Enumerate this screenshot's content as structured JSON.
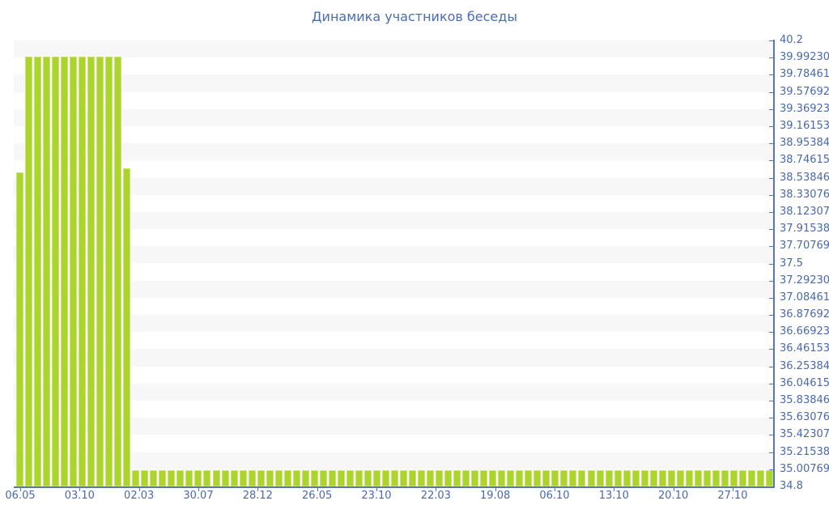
{
  "title": "Динамика участников беседы",
  "colors": {
    "background": "#ffffff",
    "title_text": "#4a6cb5",
    "axis_text": "#4a68ae",
    "axis_line": "#5b74b8",
    "bar_fill": "#abd42e",
    "bar_border": "#c9e36e",
    "stripe_band": "#f7f7f7"
  },
  "chart_data": {
    "type": "bar",
    "title": "Динамика участников беседы",
    "xlabel": "",
    "ylabel": "",
    "legend": "none",
    "y_axis_side": "right",
    "grid": "alternating horizontal stripe bands",
    "ylim": [
      34.8,
      40.2
    ],
    "y_tick_labels": [
      "40.2",
      "39.99230",
      "39.78461",
      "39.57692",
      "39.36923",
      "39.16153",
      "38.95384",
      "38.74615",
      "38.53846",
      "38.33076",
      "38.12307",
      "37.91538",
      "37.70769",
      "37.5",
      "37.29230",
      "37.08461",
      "36.87692",
      "36.66923",
      "36.46153",
      "36.25384",
      "36.04615",
      "35.83846",
      "35.63076",
      "35.42307",
      "35.21538",
      "35.00769",
      "34.8"
    ],
    "x_tick_labels": [
      "06.05",
      "03.10",
      "02.03",
      "30.07",
      "28.12",
      "26.05",
      "23.10",
      "22.03",
      "19.08",
      "06.10",
      "13.10",
      "20.10",
      "27.10"
    ],
    "values": [
      38.6,
      40,
      40,
      40,
      40,
      40,
      40,
      40,
      40,
      40,
      40,
      40,
      38.65,
      35,
      35,
      35,
      35,
      35,
      35,
      35,
      35,
      35,
      35,
      35,
      35,
      35,
      35,
      35,
      35,
      35,
      35,
      35,
      35,
      35,
      35,
      35,
      35,
      35,
      35,
      35,
      35,
      35,
      35,
      35,
      35,
      35,
      35,
      35,
      35,
      35,
      35,
      35,
      35,
      35,
      35,
      35,
      35,
      35,
      35,
      35,
      35,
      35,
      35,
      35,
      35,
      35,
      35,
      35,
      35,
      35,
      35,
      35,
      35,
      35,
      35,
      35,
      35,
      35,
      35,
      35,
      35,
      35,
      35,
      35,
      35
    ]
  }
}
